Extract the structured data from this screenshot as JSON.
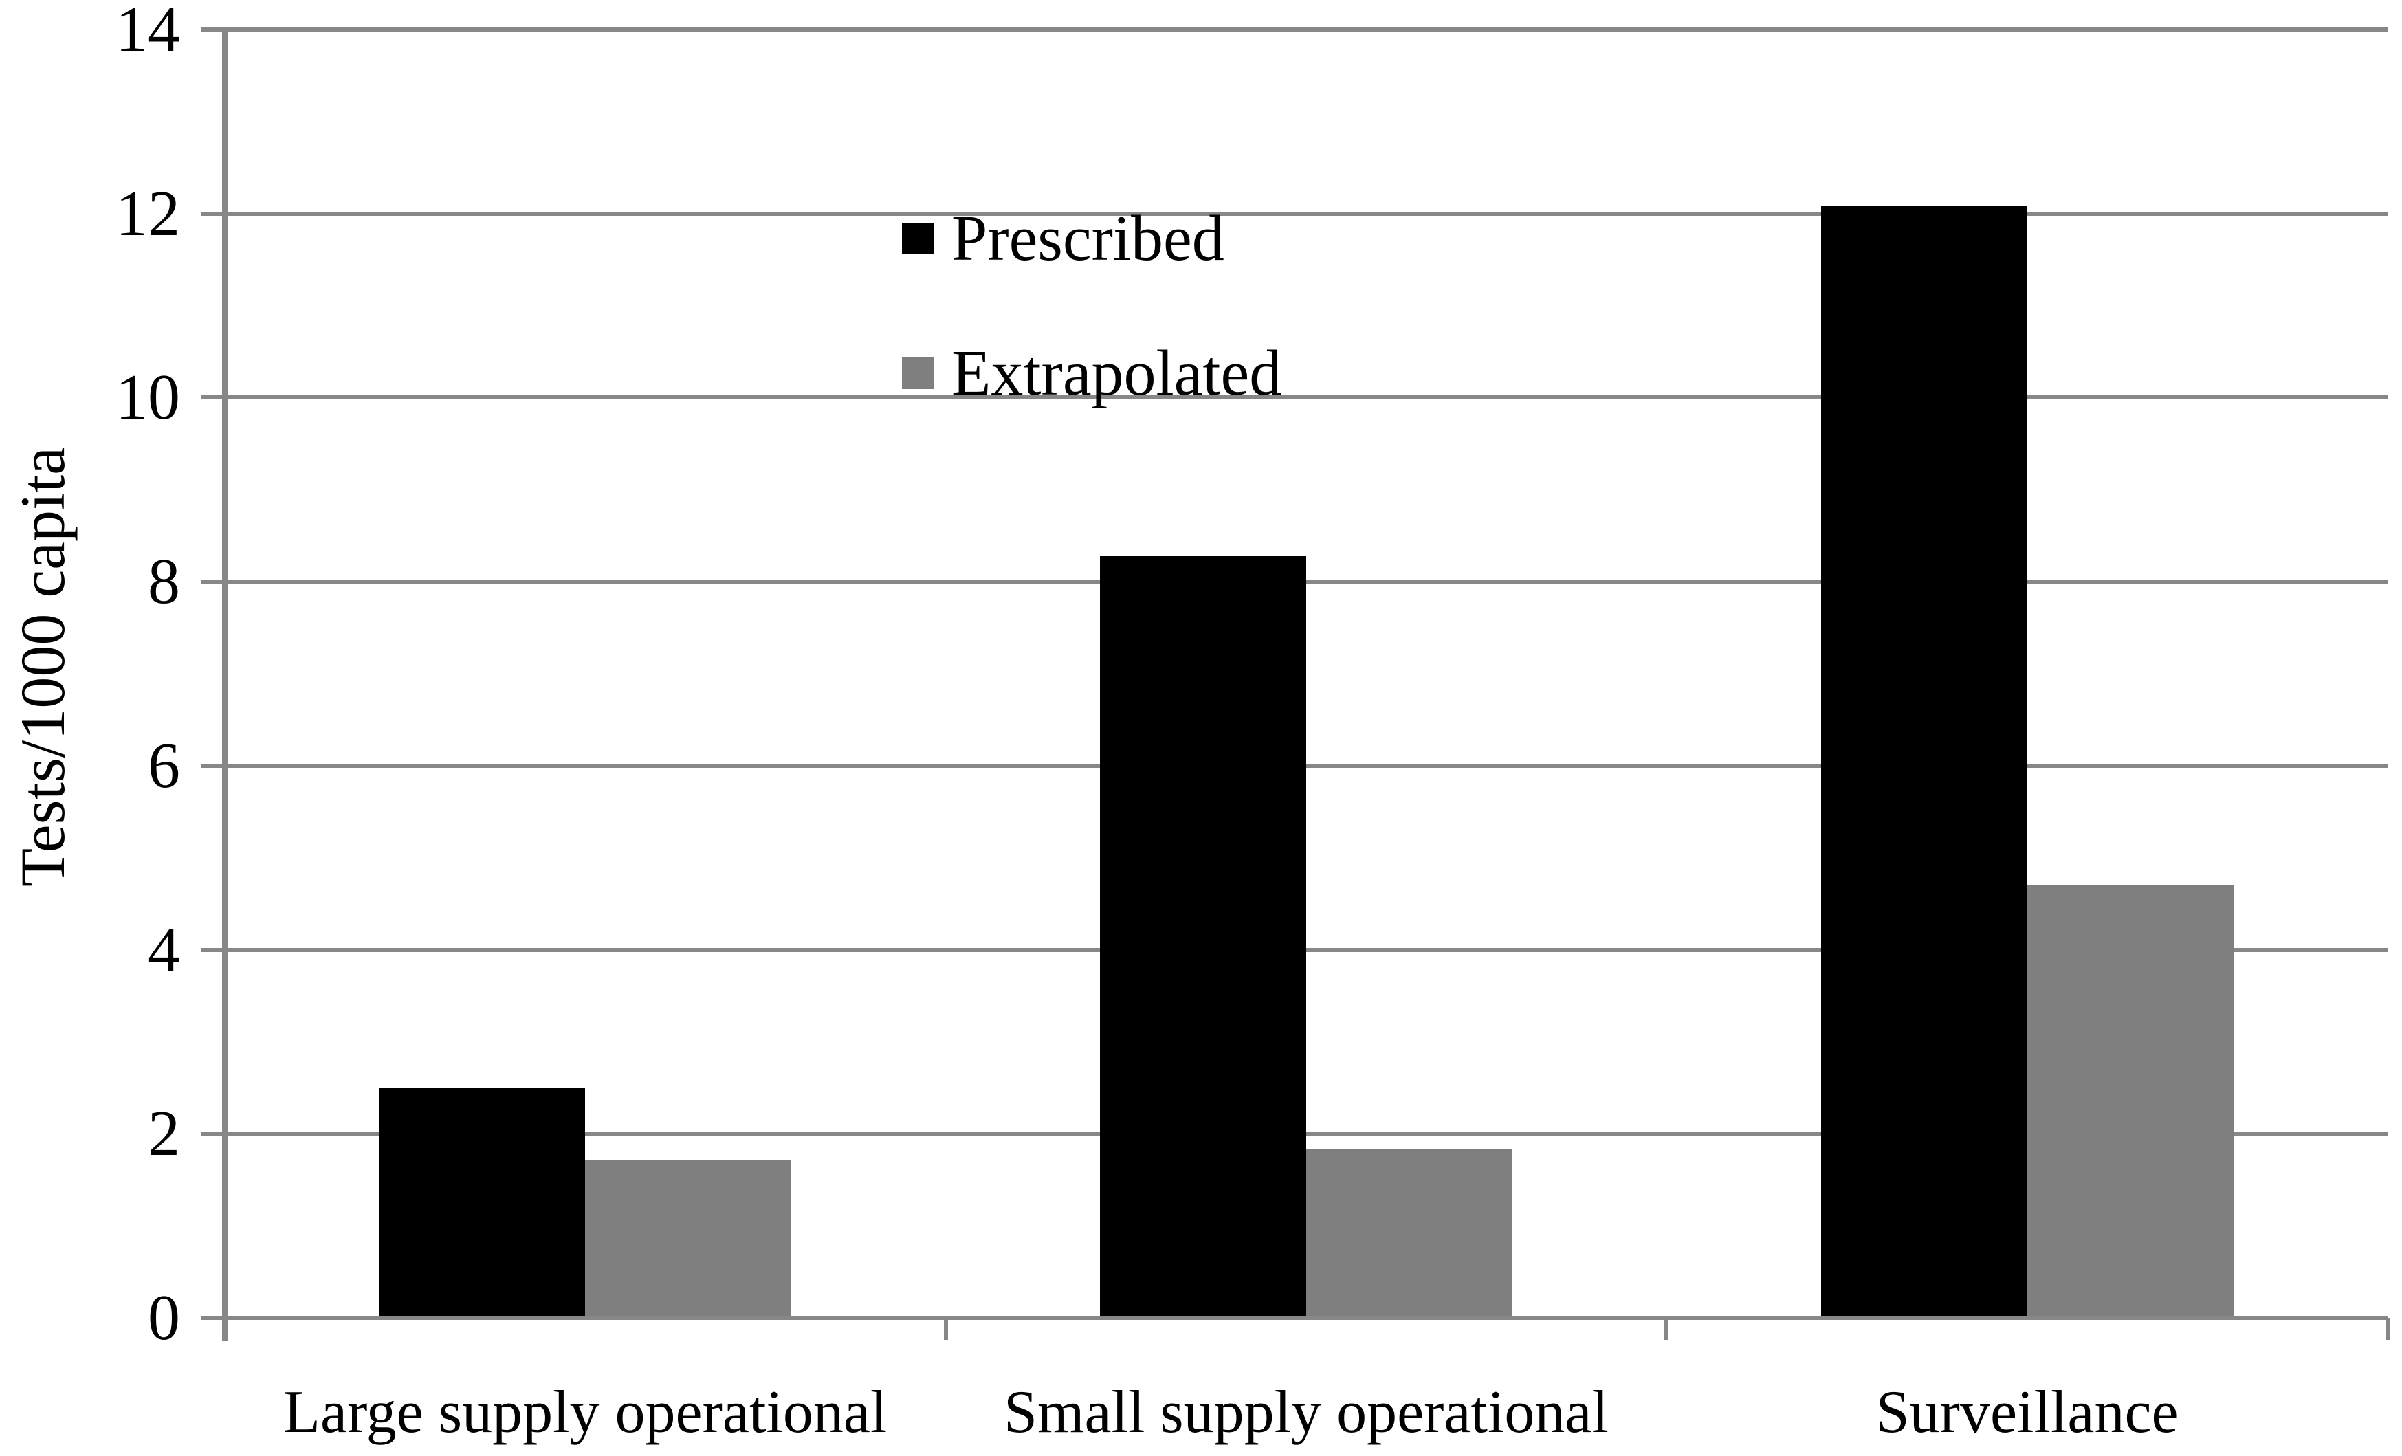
{
  "figure": {
    "background": "#ffffff",
    "text_color": "#000000"
  },
  "chart_data": {
    "type": "bar",
    "title": "",
    "xlabel": "",
    "ylabel": "Tests/1000 capita",
    "categories": [
      "Large supply operational",
      "Small supply operational",
      "Surveillance"
    ],
    "series": [
      {
        "name": "Prescribed",
        "color": "#000000",
        "values": [
          2.5,
          8.28,
          12.09
        ]
      },
      {
        "name": "Extrapolated",
        "color": "#7f7f7f",
        "values": [
          1.72,
          1.84,
          4.7
        ]
      }
    ],
    "ylim": [
      0,
      14
    ],
    "ytick_step": 2,
    "ytick_labels": [
      "0",
      "2",
      "4",
      "6",
      "8",
      "10",
      "12",
      "14"
    ],
    "grid": "horizontal",
    "gridline_color": "#878787",
    "axis_color": "#878787",
    "legend_position": "upper-left-inside"
  }
}
